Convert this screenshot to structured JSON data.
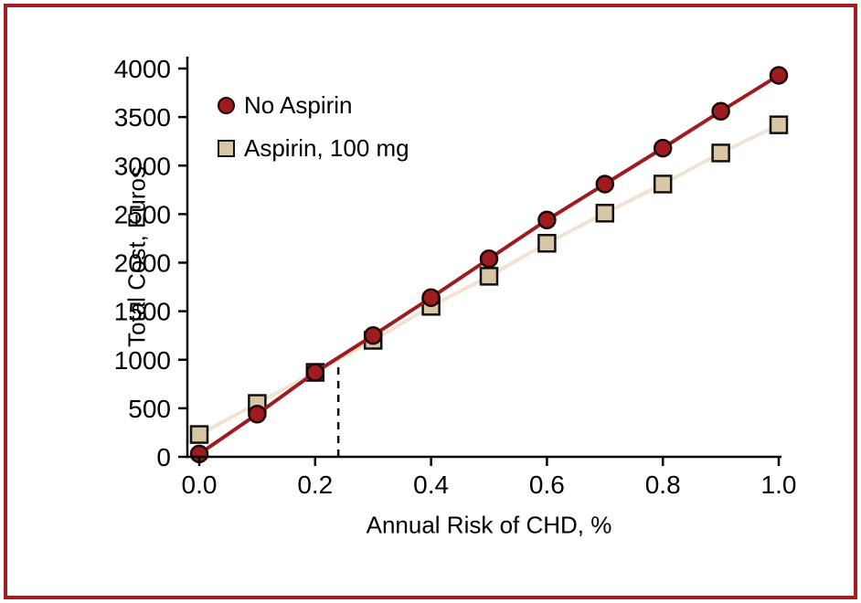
{
  "frame": {
    "border_color": "#a31d22"
  },
  "chart_data": {
    "type": "line",
    "title": "",
    "xlabel": "Annual Risk of CHD, %",
    "ylabel": "Total Cost, Euros",
    "xlim": [
      0.0,
      1.0
    ],
    "ylim": [
      0,
      4000
    ],
    "x": [
      0.0,
      0.1,
      0.2,
      0.3,
      0.4,
      0.5,
      0.6,
      0.7,
      0.8,
      0.9,
      1.0
    ],
    "series": [
      {
        "name": "Aspirin, 100 mg",
        "marker": "square",
        "marker_color": "#d8c6a6",
        "marker_edge": "#111111",
        "line_color": "#f2e2d2",
        "values": [
          230,
          550,
          870,
          1200,
          1550,
          1860,
          2200,
          2510,
          2810,
          3130,
          3420
        ]
      },
      {
        "name": "No Aspirin",
        "marker": "circle",
        "marker_color": "#9e1b1f",
        "marker_edge": "#1a0505",
        "line_color": "#9e1b1f",
        "values": [
          30,
          440,
          870,
          1250,
          1640,
          2040,
          2440,
          2810,
          3180,
          3560,
          3930
        ]
      }
    ],
    "xticks": [
      0.0,
      0.2,
      0.4,
      0.6,
      0.8,
      1.0
    ],
    "xtick_labels": [
      "0.0",
      "0.2",
      "0.4",
      "0.6",
      "0.8",
      "1.0"
    ],
    "yticks": [
      0,
      500,
      1000,
      1500,
      2000,
      2500,
      3000,
      3500,
      4000
    ],
    "ytick_labels": [
      "0",
      "500",
      "1000",
      "1500",
      "2000",
      "2500",
      "3000",
      "3500",
      "4000"
    ],
    "annotation": {
      "type": "dashed-vline",
      "x": 0.24,
      "y_from": 0,
      "y_to": 1020
    },
    "legend_position": "upper-left-inside",
    "grid": false
  },
  "legend": {
    "items": [
      {
        "label": "No Aspirin",
        "marker": "circle"
      },
      {
        "label": "Aspirin, 100 mg",
        "marker": "square"
      }
    ]
  }
}
